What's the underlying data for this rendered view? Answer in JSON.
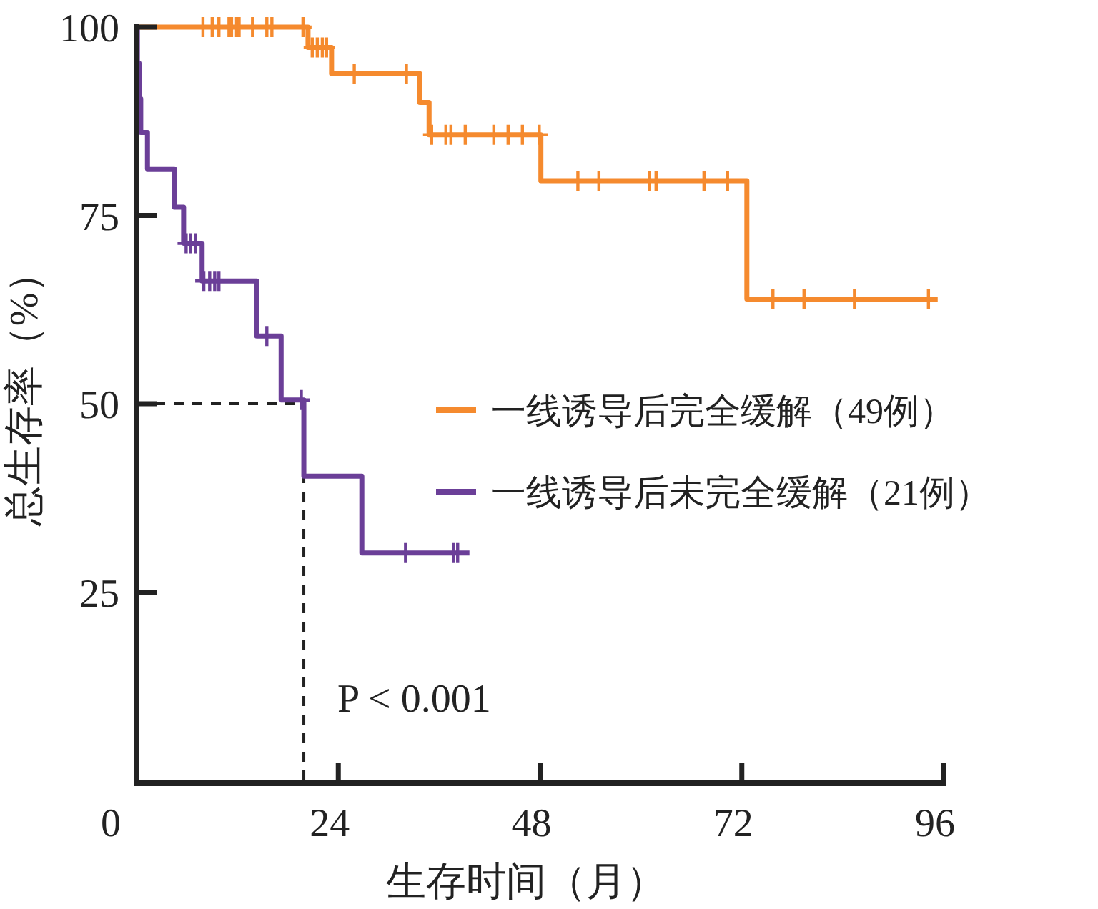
{
  "chart_data": {
    "type": "step",
    "xlabel": "生存时间（月）",
    "ylabel": "总生存率（%）",
    "xlim": [
      0,
      96
    ],
    "ylim": [
      0,
      100
    ],
    "xticks": [
      0,
      24,
      48,
      72,
      96
    ],
    "yticks": [
      25,
      50,
      75,
      100
    ],
    "grid": false,
    "legend": "right",
    "series": [
      {
        "name": "一线诱导后完全缓解（49例）",
        "color": "#f58a2e",
        "x": [
          0,
          20.4,
          23.2,
          33.7,
          34.8,
          48.1,
          72.6,
          95.3
        ],
        "values": [
          100,
          97.3,
          93.8,
          90.0,
          85.7,
          79.6,
          63.9,
          63.9
        ]
      },
      {
        "name": "一线诱导后未完全缓解（21例）",
        "color": "#6b3f98",
        "x": [
          0,
          0.1,
          0.3,
          0.5,
          1.3,
          4.5,
          5.6,
          7.8,
          14.3,
          17.2,
          19.9,
          26.8,
          39.6
        ],
        "values": [
          100,
          95.2,
          90.5,
          86.0,
          81.2,
          76.1,
          71.3,
          66.3,
          59.0,
          50.5,
          40.4,
          30.2,
          30.2
        ]
      },
      {
        "type": "scatter",
        "marker": "cross",
        "color": "#f58a2e",
        "x": [
          7.9,
          9.0,
          9.8,
          11.0,
          11.3,
          11.9,
          12.2,
          13.8,
          15.5,
          16.1,
          19.8,
          20.9,
          21.5,
          22.1,
          22.6,
          25.9,
          32.1,
          35.1,
          36.8,
          37.4,
          39.1,
          42.5,
          44.2,
          45.9,
          47.9,
          52.5,
          55.0,
          61.0,
          61.8,
          67.5,
          70.3,
          75.7,
          79.4,
          85.4,
          94.2
        ],
        "values": [
          100,
          100,
          100,
          100,
          100,
          100,
          100,
          100,
          100,
          100,
          100,
          97.3,
          97.3,
          97.3,
          97.3,
          93.8,
          93.8,
          85.7,
          85.7,
          85.7,
          85.7,
          85.7,
          85.7,
          85.7,
          85.7,
          79.6,
          79.6,
          79.6,
          79.6,
          79.6,
          79.6,
          63.9,
          63.9,
          63.9,
          63.9
        ]
      },
      {
        "type": "scatter",
        "marker": "cross",
        "color": "#6b3f98",
        "x": [
          5.9,
          6.4,
          7.0,
          8.0,
          8.7,
          9.3,
          9.8,
          15.5,
          19.6,
          32.0,
          37.7,
          38.2
        ],
        "values": [
          71.3,
          71.3,
          71.3,
          66.3,
          66.3,
          66.3,
          66.3,
          59.0,
          50.5,
          30.2,
          30.2,
          30.2
        ]
      }
    ],
    "ref_lines": [
      {
        "axis": "y",
        "value": 50,
        "color": "#222222",
        "line_style": "dashed"
      },
      {
        "axis": "x",
        "value": 19.9,
        "color": "#222222",
        "line_style": "dashed"
      }
    ],
    "annotations": [
      "P < 0.001"
    ]
  }
}
